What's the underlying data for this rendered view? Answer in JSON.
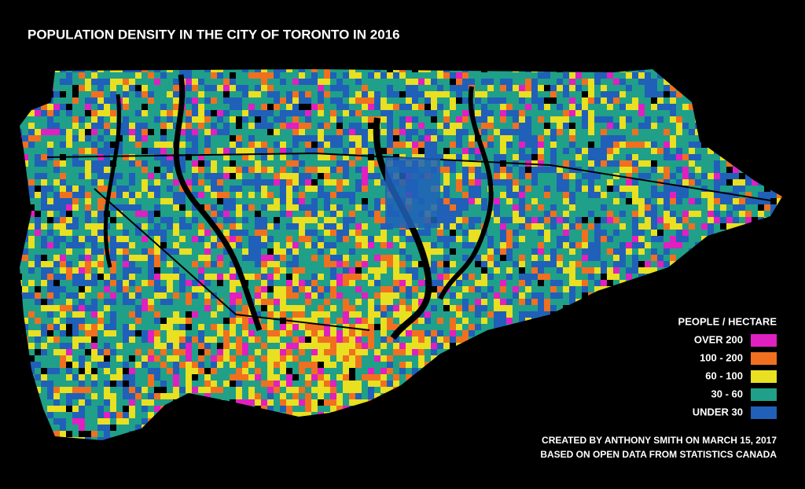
{
  "title": "POPULATION DENSITY IN THE CITY OF TORONTO IN 2016",
  "legend": {
    "title": "PEOPLE / HECTARE",
    "items": [
      {
        "label": "OVER 200",
        "color": "#e020c0"
      },
      {
        "label": "100 - 200",
        "color": "#f07020"
      },
      {
        "label": "60 - 100",
        "color": "#e8e020"
      },
      {
        "label": "30 - 60",
        "color": "#20a088"
      },
      {
        "label": "UNDER 30",
        "color": "#2060b8"
      }
    ]
  },
  "credits": [
    "CREATED BY ANTHONY SMITH ON MARCH 15, 2017",
    "BASED ON OPEN DATA FROM STATISTICS CANADA"
  ]
}
